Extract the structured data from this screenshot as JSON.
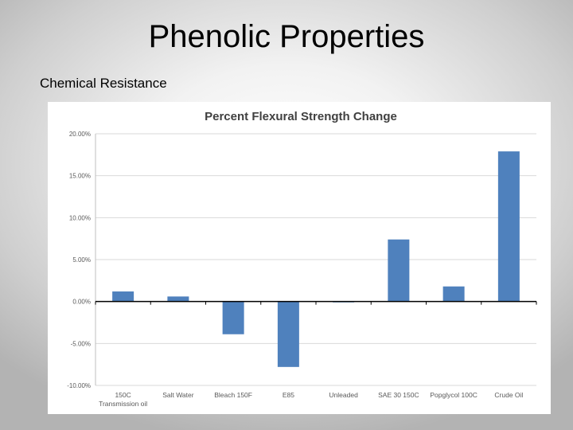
{
  "slide": {
    "title": "Phenolic Properties",
    "subtitle": "Chemical Resistance"
  },
  "chart_data": {
    "type": "bar",
    "title": "Percent Flexural Strength Change",
    "categories": [
      [
        "150C",
        "Transmission oil"
      ],
      [
        "Salt Water"
      ],
      [
        "Bleach 150F"
      ],
      [
        "E85"
      ],
      [
        "Unleaded"
      ],
      [
        "SAE 30 150C"
      ],
      [
        "Popglycol 100C"
      ],
      [
        "Crude Oil"
      ]
    ],
    "values": [
      1.2,
      0.6,
      -3.9,
      -7.8,
      -0.1,
      7.4,
      1.8,
      17.9
    ],
    "ylim": [
      -10,
      20
    ],
    "yticks": [
      20,
      15,
      10,
      5,
      0,
      -5,
      -10
    ],
    "ytick_labels": [
      "20.00%",
      "15.00%",
      "10.00%",
      "5.00%",
      "0.00%",
      "-5.00%",
      "-10.00%"
    ],
    "grid": true,
    "legend": "none",
    "bar_color": "#4f81bd",
    "grid_color": "#d9d9d9"
  }
}
